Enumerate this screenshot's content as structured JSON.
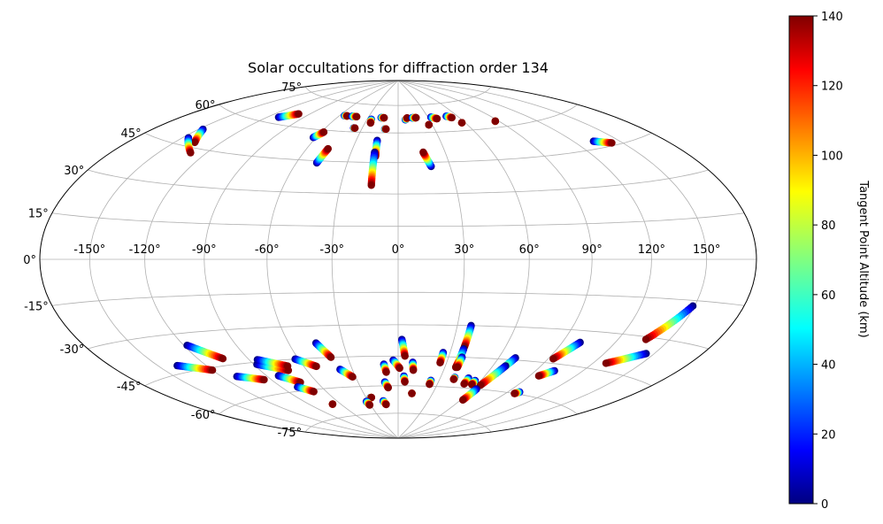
{
  "chart_data": {
    "type": "scatter",
    "projection": "aitoff-hammer (elliptical)",
    "title": "Solar occultations for diffraction order 134",
    "xlabel": "",
    "ylabel": "",
    "grid": true,
    "x_ticks": [
      "-150°",
      "-120°",
      "-90°",
      "-60°",
      "-30°",
      "0°",
      "30°",
      "60°",
      "90°",
      "120°",
      "150°"
    ],
    "x_tick_values": [
      -150,
      -120,
      -90,
      -60,
      -30,
      0,
      30,
      60,
      90,
      120,
      150
    ],
    "y_ticks": [
      "75°",
      "60°",
      "45°",
      "30°",
      "15°",
      "0°",
      "-15°",
      "-30°",
      "-45°",
      "-60°",
      "-75°"
    ],
    "y_tick_values": [
      75,
      60,
      45,
      30,
      15,
      0,
      -15,
      -30,
      -45,
      -60,
      -75
    ],
    "xlim": [
      -180,
      180
    ],
    "ylim": [
      -90,
      90
    ],
    "colorbar": {
      "label": "Tangent Point Altitude (km)",
      "colormap": "jet",
      "range": [
        0,
        140
      ],
      "ticks": [
        "0",
        "20",
        "40",
        "60",
        "80",
        "100",
        "120",
        "140"
      ],
      "tick_values": [
        0,
        20,
        40,
        60,
        80,
        100,
        120,
        140
      ]
    },
    "tracks": [
      {
        "lon0": -147,
        "lat0": 52,
        "lon1": -137,
        "lat1": 47
      },
      {
        "lon0": -146,
        "lat0": 48,
        "lon1": -130,
        "lat1": 43
      },
      {
        "lon0": -111,
        "lat0": 63,
        "lon1": -100,
        "lat1": 66
      },
      {
        "lon0": -62,
        "lat0": 56,
        "lon1": -58,
        "lat1": 59
      },
      {
        "lon0": -48,
        "lat0": 44,
        "lon1": -46,
        "lat1": 51
      },
      {
        "lon0": -37,
        "lat0": 62,
        "lon1": -36,
        "lat1": 62
      },
      {
        "lon0": -55,
        "lat0": 68,
        "lon1": -52,
        "lat1": 68
      },
      {
        "lon0": -47,
        "lat0": 68,
        "lon1": -42,
        "lat1": 68
      },
      {
        "lon0": -17,
        "lat0": 68,
        "lon1": -14,
        "lat1": 68
      },
      {
        "lon0": -26,
        "lat0": 67,
        "lon1": -25,
        "lat1": 65
      },
      {
        "lon0": -15,
        "lat0": 56,
        "lon1": -14,
        "lat1": 48
      },
      {
        "lon0": -15,
        "lat0": 50,
        "lon1": -14,
        "lat1": 34
      },
      {
        "lon0": -11,
        "lat0": 62,
        "lon1": -10,
        "lat1": 62
      },
      {
        "lon0": 7,
        "lat0": 67,
        "lon1": 9,
        "lat1": 68
      },
      {
        "lon0": 14,
        "lat0": 68,
        "lon1": 18,
        "lat1": 68
      },
      {
        "lon0": 19,
        "lat0": 43,
        "lon1": 16,
        "lat1": 50
      },
      {
        "lon0": 27,
        "lat0": 64,
        "lon1": 27,
        "lat1": 64
      },
      {
        "lon0": 33,
        "lat0": 68,
        "lon1": 38,
        "lat1": 67
      },
      {
        "lon0": 49,
        "lat0": 68,
        "lon1": 53,
        "lat1": 67
      },
      {
        "lon0": 57,
        "lat0": 64,
        "lon1": 57,
        "lat1": 64
      },
      {
        "lon0": 87,
        "lat0": 63,
        "lon1": 87,
        "lat1": 63
      },
      {
        "lon0": 133,
        "lat0": 48,
        "lon1": 143,
        "lat1": 46
      },
      {
        "lon0": -138,
        "lat0": -42,
        "lon1": -120,
        "lat1": -46
      },
      {
        "lon0": -118,
        "lat0": -35,
        "lon1": -105,
        "lat1": -42
      },
      {
        "lon0": -110,
        "lat0": -50,
        "lon1": -95,
        "lat1": -53
      },
      {
        "lon0": -88,
        "lat0": -46,
        "lon1": -72,
        "lat1": -50
      },
      {
        "lon0": -85,
        "lat0": -44,
        "lon1": -70,
        "lat1": -48
      },
      {
        "lon0": -82,
        "lat0": -52,
        "lon1": -72,
        "lat1": -56
      },
      {
        "lon0": -78,
        "lat0": -58,
        "lon1": -70,
        "lat1": -61
      },
      {
        "lon0": -68,
        "lat0": -68,
        "lon1": -68,
        "lat1": -68
      },
      {
        "lon0": -62,
        "lat0": -45,
        "lon1": -52,
        "lat1": -49
      },
      {
        "lon0": -45,
        "lat0": -38,
        "lon1": -40,
        "lat1": -45
      },
      {
        "lon0": -38,
        "lat0": -51,
        "lon1": -32,
        "lat1": -55
      },
      {
        "lon0": -26,
        "lat0": -66,
        "lon1": -25,
        "lat1": -66
      },
      {
        "lon0": -32,
        "lat0": -68,
        "lon1": -31,
        "lat1": -70
      },
      {
        "lon0": -15,
        "lat0": -68,
        "lon1": -13,
        "lat1": -70
      },
      {
        "lon0": -9,
        "lat0": -49,
        "lon1": -8,
        "lat1": -53
      },
      {
        "lon0": -10,
        "lat0": -58,
        "lon1": -8,
        "lat1": -61
      },
      {
        "lon0": -3,
        "lat0": -47,
        "lon1": 1,
        "lat1": -51
      },
      {
        "lon0": 2,
        "lat0": -37,
        "lon1": 4,
        "lat1": -45
      },
      {
        "lon0": 4,
        "lat0": -55,
        "lon1": 5,
        "lat1": -58
      },
      {
        "lon0": 9,
        "lat0": -48,
        "lon1": 10,
        "lat1": -52
      },
      {
        "lon0": 12,
        "lat0": -64,
        "lon1": 12,
        "lat1": -64
      },
      {
        "lon0": 26,
        "lat0": -43,
        "lon1": 26,
        "lat1": -48
      },
      {
        "lon0": 24,
        "lat0": -57,
        "lon1": 24,
        "lat1": -59
      },
      {
        "lon0": 37,
        "lat0": -30,
        "lon1": 37,
        "lat1": -40
      },
      {
        "lon0": 37,
        "lat0": -41,
        "lon1": 37,
        "lat1": -50
      },
      {
        "lon0": 38,
        "lat0": -45,
        "lon1": 38,
        "lat1": -50
      },
      {
        "lon0": 40,
        "lat0": -55,
        "lon1": 40,
        "lat1": -56
      },
      {
        "lon0": 50,
        "lat0": -55,
        "lon1": 50,
        "lat1": -58
      },
      {
        "lon0": 56,
        "lat0": -56,
        "lon1": 56,
        "lat1": -58
      },
      {
        "lon0": 70,
        "lat0": -44,
        "lon1": 66,
        "lat1": -52
      },
      {
        "lon0": 68,
        "lat0": -48,
        "lon1": 63,
        "lat1": -58
      },
      {
        "lon0": 63,
        "lat0": -60,
        "lon1": 62,
        "lat1": -66
      },
      {
        "lon0": 100,
        "lat0": -35,
        "lon1": 93,
        "lat1": -43
      },
      {
        "lon0": 102,
        "lat0": -48,
        "lon1": 96,
        "lat1": -51
      },
      {
        "lon0": 99,
        "lat0": -59,
        "lon1": 97,
        "lat1": -60
      },
      {
        "lon0": 149,
        "lat0": -17,
        "lon1": 136,
        "lat1": -31
      },
      {
        "lon0": 145,
        "lat0": -36,
        "lon1": 128,
        "lat1": -42
      }
    ]
  }
}
